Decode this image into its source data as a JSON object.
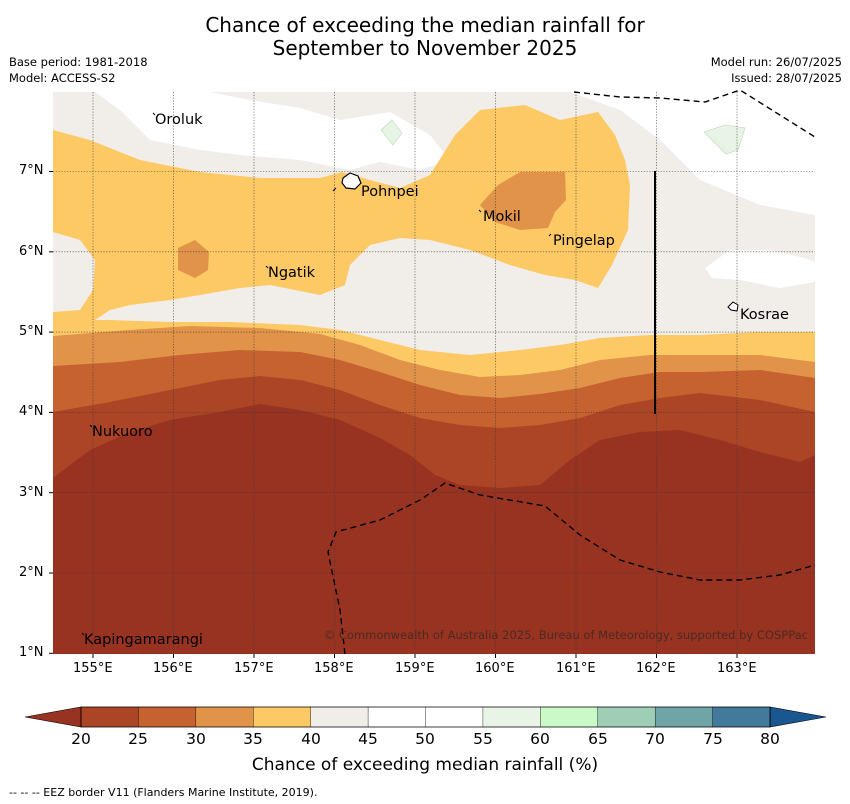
{
  "header": {
    "title_line1": "Chance of exceeding the median rainfall for",
    "title_line2": "September to November 2025",
    "base_period": "Base period: 1981-2018",
    "model": "Model: ACCESS-S2",
    "model_run": "Model run: 26/07/2025",
    "issued": "Issued: 28/07/2025"
  },
  "map": {
    "lon_labels": [
      "155°E",
      "156°E",
      "157°E",
      "158°E",
      "159°E",
      "160°E",
      "161°E",
      "162°E",
      "163°E"
    ],
    "lat_labels": [
      "7°N",
      "6°N",
      "5°N",
      "4°N",
      "3°N",
      "2°N",
      "1°N"
    ],
    "places": {
      "oroluk": "Oroluk",
      "pohnpei": "Pohnpei",
      "mokil": "Mokil",
      "pingelap": "Pingelap",
      "ngatik": "Ngatik",
      "kosrae": "Kosrae",
      "nukuoro": "Nukuoro",
      "kapingamarangi": "Kapingamarangi"
    },
    "copyright": "© Commonwealth of Australia 2025, Bureau of Meteorology, supported by COSPPac"
  },
  "colorbar": {
    "ticks": [
      "20",
      "25",
      "30",
      "35",
      "40",
      "45",
      "50",
      "55",
      "60",
      "65",
      "70",
      "75",
      "80"
    ],
    "colors": [
      "#ac4426",
      "#c6622f",
      "#e09349",
      "#fdc965",
      "#f1ede9",
      "#ffffff",
      "#ffffff",
      "#e8f5e6",
      "#cbfac9",
      "#9fceb6",
      "#6fa5a7",
      "#43799b"
    ],
    "under_color": "#983322",
    "over_color": "#1a5690",
    "title": "Chance of exceeding median rainfall (%)"
  },
  "footnote": "--  --  -- EEZ border V11 (Flanders Marine Institute, 2019)."
}
